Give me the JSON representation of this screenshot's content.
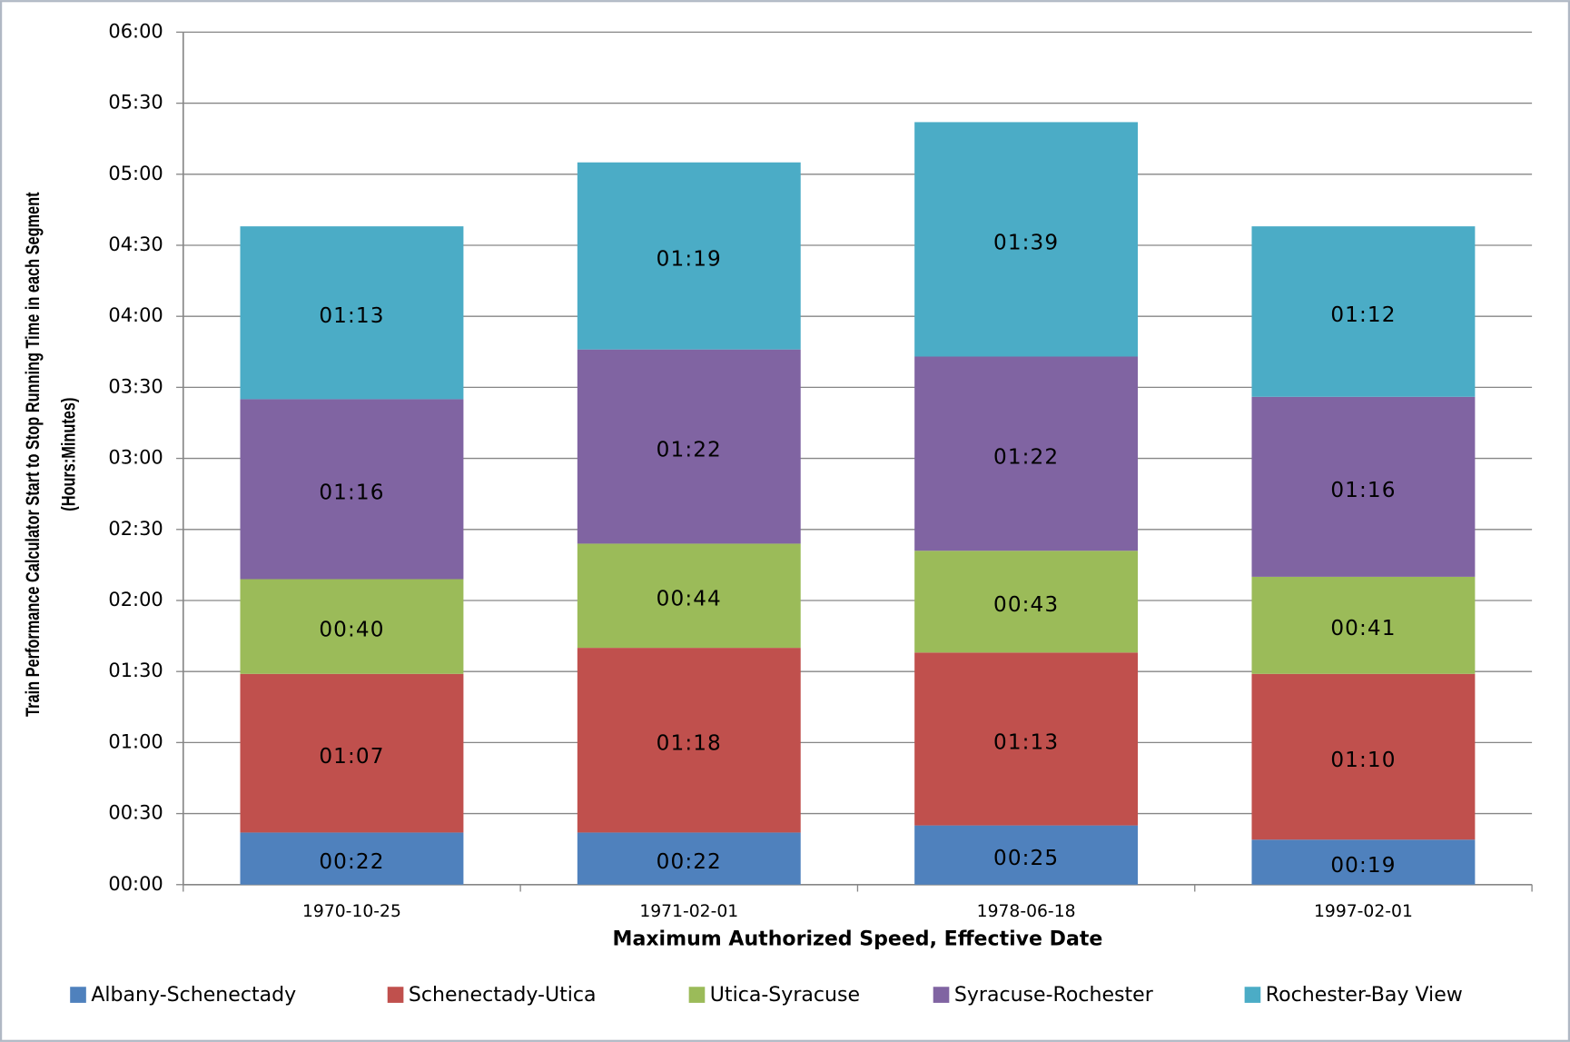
{
  "chart_data": {
    "type": "stacked_bar",
    "y_label": [
      "Train Performance Calculator  Start to Stop Running Time in each  Segment",
      "(Hours:Minutes)"
    ],
    "x_label": "Maximum Authorized Speed, Effective Date",
    "categories": [
      "1970-10-25",
      "1971-02-01",
      "1978-06-18",
      "1997-02-01"
    ],
    "series": [
      {
        "name": "Albany-Schenectady",
        "color": "#4f81bd",
        "values": [
          22,
          22,
          25,
          19
        ],
        "value_labels": [
          "00:22",
          "00:22",
          "00:25",
          "00:19"
        ]
      },
      {
        "name": "Schenectady-Utica",
        "color": "#c0504d",
        "values": [
          67,
          78,
          73,
          70
        ],
        "value_labels": [
          "01:07",
          "01:18",
          "01:13",
          "01:10"
        ]
      },
      {
        "name": "Utica-Syracuse",
        "color": "#9bbb59",
        "values": [
          40,
          44,
          43,
          41
        ],
        "value_labels": [
          "00:40",
          "00:44",
          "00:43",
          "00:41"
        ]
      },
      {
        "name": "Syracuse-Rochester",
        "color": "#8064a2",
        "values": [
          76,
          82,
          82,
          76
        ],
        "value_labels": [
          "01:16",
          "01:22",
          "01:22",
          "01:16"
        ]
      },
      {
        "name": "Rochester-Bay View",
        "color": "#4bacc6",
        "values": [
          73,
          79,
          99,
          72
        ],
        "value_labels": [
          "01:13",
          "01:19",
          "01:39",
          "01:12"
        ]
      }
    ],
    "ylim": [
      0,
      360
    ],
    "yticks": [
      {
        "value": 0,
        "label": "00:00"
      },
      {
        "value": 30,
        "label": "00:30"
      },
      {
        "value": 60,
        "label": "01:00"
      },
      {
        "value": 90,
        "label": "01:30"
      },
      {
        "value": 120,
        "label": "02:00"
      },
      {
        "value": 150,
        "label": "02:30"
      },
      {
        "value": 180,
        "label": "03:00"
      },
      {
        "value": 210,
        "label": "03:30"
      },
      {
        "value": 240,
        "label": "04:00"
      },
      {
        "value": 270,
        "label": "04:30"
      },
      {
        "value": 300,
        "label": "05:00"
      },
      {
        "value": 330,
        "label": "05:30"
      },
      {
        "value": 360,
        "label": "06:00"
      }
    ],
    "grid": true,
    "legend": "bottom"
  }
}
